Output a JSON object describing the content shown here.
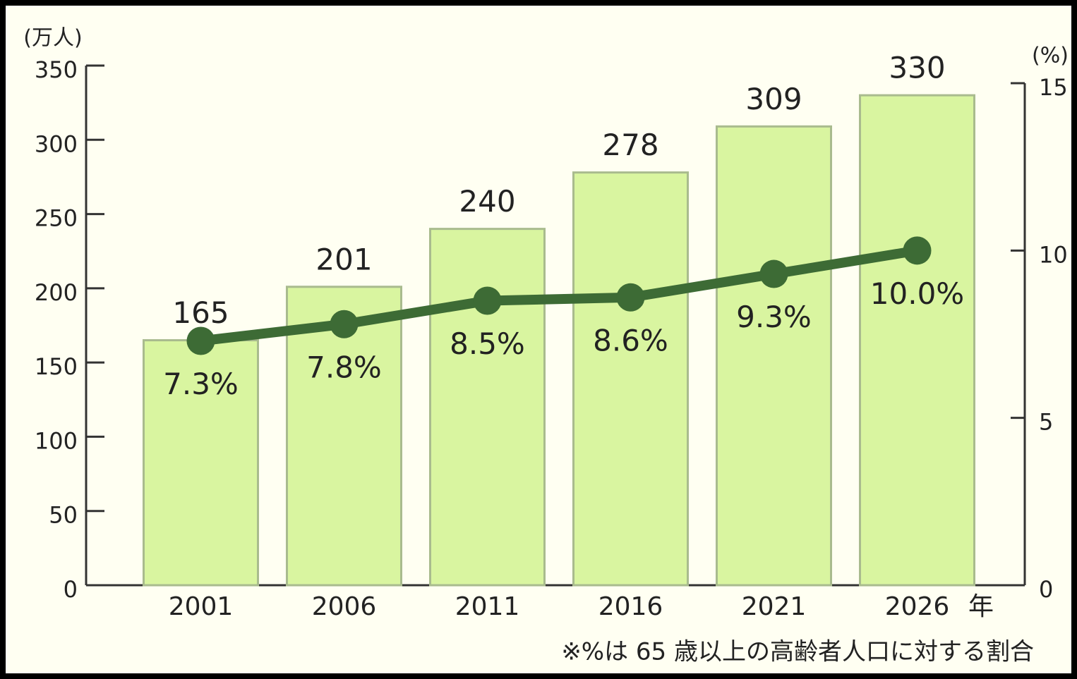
{
  "chart_data": {
    "type": "bar_line",
    "ylabel": "(万人)",
    "y2label": "(%)",
    "x_unit": "年",
    "note": "※%は 65 歳以上の高齢者人口に対する割合",
    "categories": [
      "2001",
      "2006",
      "2011",
      "2016",
      "2021",
      "2026"
    ],
    "series": [
      {
        "type": "bar",
        "color": "#d9f5a0",
        "values": [
          165,
          201,
          240,
          278,
          309,
          330
        ]
      },
      {
        "type": "line",
        "color": "#3d6b35",
        "axis": "y2",
        "values": [
          7.3,
          7.8,
          8.5,
          8.6,
          9.3,
          10.0
        ],
        "value_labels": [
          "7.3%",
          "7.8%",
          "8.5%",
          "8.6%",
          "9.3%",
          "10.0%"
        ]
      }
    ],
    "ylim": [
      0,
      350
    ],
    "yticks": [
      0,
      50,
      100,
      150,
      200,
      250,
      300,
      350
    ],
    "y2lim": [
      0,
      15
    ],
    "y2ticks": [
      0,
      5,
      10,
      15
    ]
  }
}
